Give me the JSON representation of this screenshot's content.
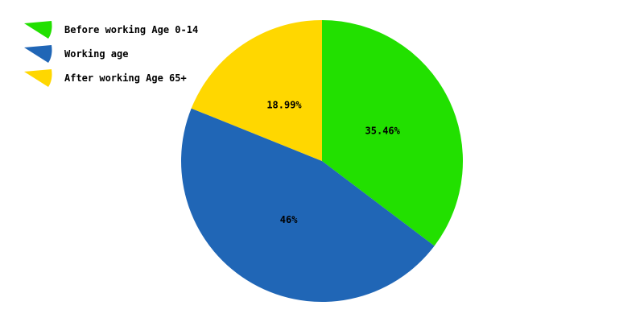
{
  "chart_data": {
    "type": "pie",
    "start_angle_deg": 0,
    "direction": "clockwise",
    "legend_position": "top-left",
    "slices": [
      {
        "name": "Before working Age 0-14",
        "value": 35.46,
        "label": "35.46%",
        "color": "#22e000"
      },
      {
        "name": "Working age",
        "value": 46,
        "label": "46%",
        "color": "#2066b6"
      },
      {
        "name": "After working Age 65+",
        "value": 18.99,
        "label": "18.99%",
        "color": "#ffd700"
      }
    ]
  }
}
